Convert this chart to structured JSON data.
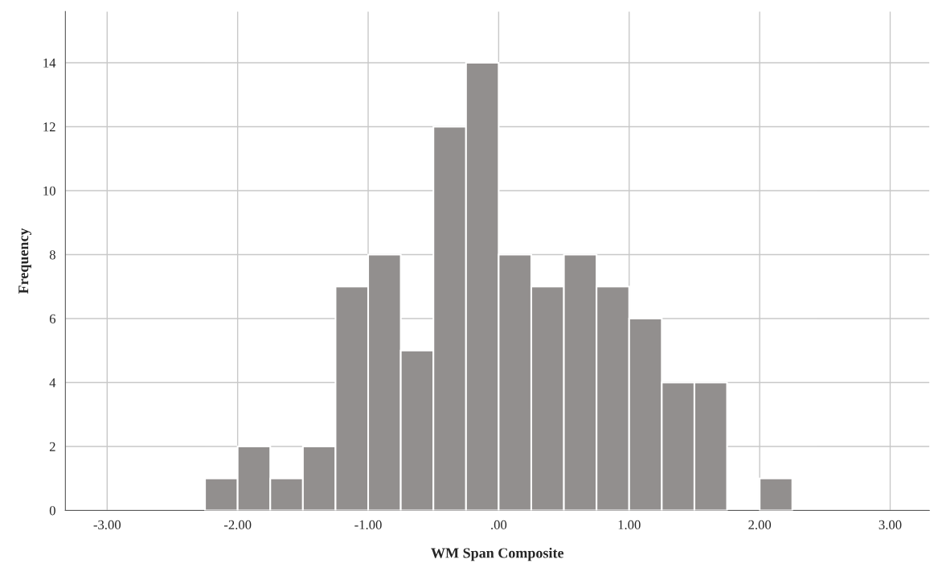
{
  "chart_data": {
    "type": "histogram",
    "xlabel": "WM Span Composite",
    "ylabel": "Frequency",
    "bins": [
      -2.25,
      -2.0,
      -1.75,
      -1.5,
      -1.25,
      -1.0,
      -0.75,
      -0.5,
      -0.25,
      0.0,
      0.25,
      0.5,
      0.75,
      1.0,
      1.25,
      1.5,
      1.75,
      2.0,
      2.25
    ],
    "values": [
      1,
      2,
      1,
      2,
      7,
      8,
      5,
      12,
      14,
      8,
      7,
      8,
      7,
      6,
      4,
      4,
      0,
      1
    ],
    "color": "#928f8e",
    "xlim": [
      -3.32,
      3.3
    ],
    "ylim": [
      0,
      15.6
    ],
    "xticks": [
      {
        "value": -3,
        "label": "-3.00"
      },
      {
        "value": -2,
        "label": "-2.00"
      },
      {
        "value": -1,
        "label": "-1.00"
      },
      {
        "value": 0,
        "label": ".00"
      },
      {
        "value": 1,
        "label": "1.00"
      },
      {
        "value": 2,
        "label": "2.00"
      },
      {
        "value": 3,
        "label": "3.00"
      }
    ],
    "yticks": [
      0,
      2,
      4,
      6,
      8,
      10,
      12,
      14
    ],
    "grid": true
  }
}
